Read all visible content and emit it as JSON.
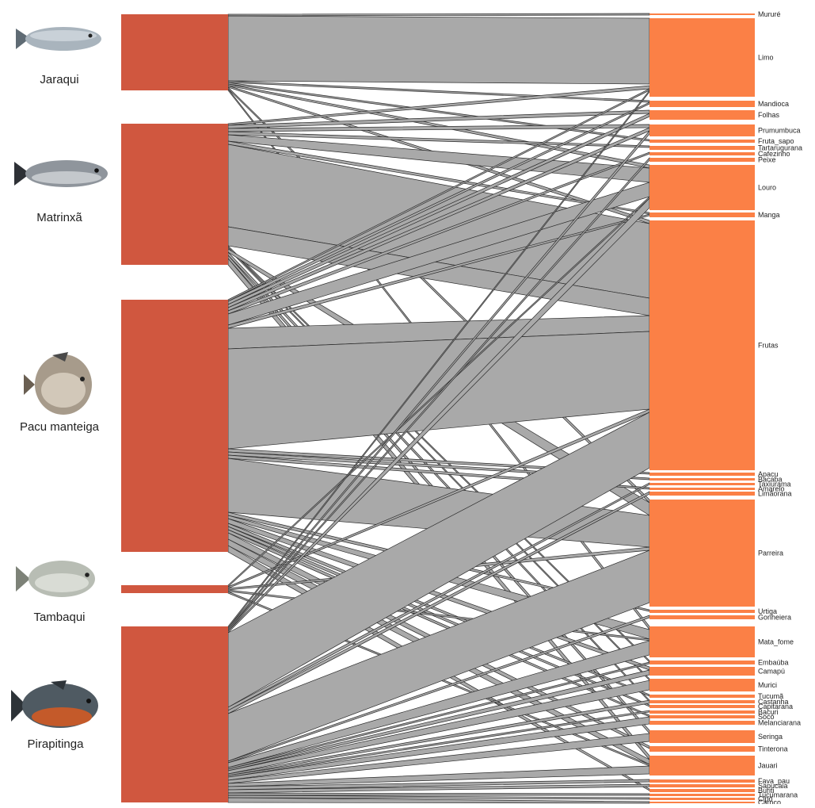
{
  "colors": {
    "fish_block": "#d0573f",
    "diet_block": "#fb8046",
    "link_fill": "#a9a9a9",
    "link_stroke": "#2b2b2b",
    "label": "#222222"
  },
  "fish": [
    {
      "name": "Jaraqui",
      "icon": "jaraqui-fish-icon"
    },
    {
      "name": "Matrinxã",
      "icon": "matrinxa-fish-icon"
    },
    {
      "name": "Pacu manteiga",
      "icon": "pacu-fish-icon"
    },
    {
      "name": "Tambaqui",
      "icon": "tambaqui-fish-icon"
    },
    {
      "name": "Pirapitinga",
      "icon": "pirapitinga-fish-icon"
    }
  ],
  "food_items": [
    "Mururé",
    "Limo",
    "Mandioca",
    "Folhas",
    "Prumumbuca",
    "Fruta_sapo",
    "Tartarugurana",
    "Cafezinho",
    "Peixe",
    "Louro",
    "Manga",
    "Frutas",
    "Apacu",
    "Bacaba",
    "Taxiurama",
    "Amarelo",
    "Limãorana",
    "Parreira",
    "Urtiga",
    "Gonheiera",
    "Mata_fome",
    "Embaúba",
    "Camapú",
    "Murici",
    "Tucumã",
    "Castanha",
    "Capitarana",
    "Bacuri",
    "Socó",
    "Melanciarana",
    "Seringa",
    "Tinterona",
    "Jauari",
    "Fava_pau",
    "Sapucaia",
    "Buriti",
    "Tucumarana",
    "Cipó",
    "Caroço"
  ]
}
